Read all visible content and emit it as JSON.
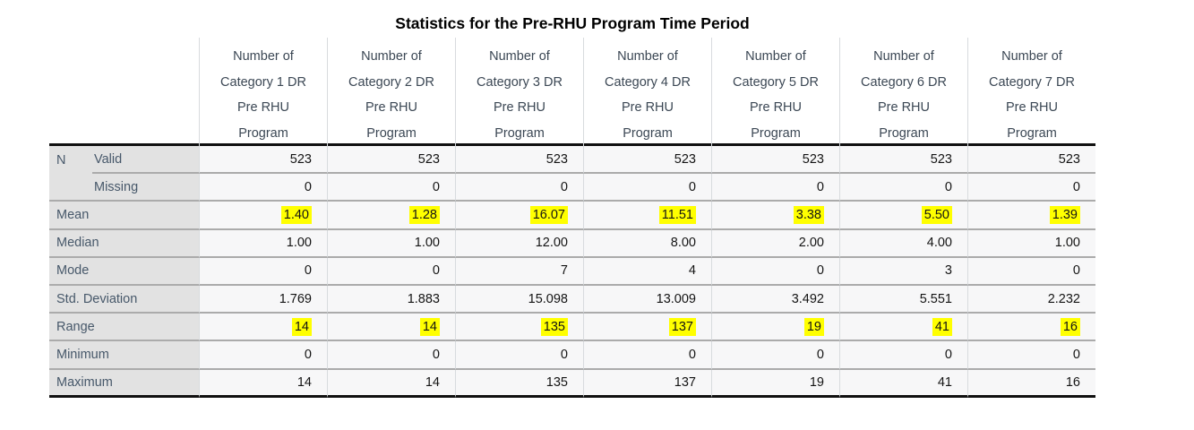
{
  "chart_data": {
    "type": "table",
    "title": "Statistics for the Pre-RHU Program Time Period",
    "columns": [
      {
        "header": "Number of Category 1 DR Pre RHU Program",
        "lines": [
          "Number of",
          "Category 1 DR",
          "Pre RHU",
          "Program"
        ]
      },
      {
        "header": "Number of Category 2 DR Pre RHU Program",
        "lines": [
          "Number of",
          "Category 2 DR",
          "Pre RHU",
          "Program"
        ]
      },
      {
        "header": "Number of Category 3 DR Pre RHU Program",
        "lines": [
          "Number of",
          "Category 3 DR",
          "Pre RHU",
          "Program"
        ]
      },
      {
        "header": "Number of Category 4 DR Pre RHU Program",
        "lines": [
          "Number of",
          "Category 4 DR",
          "Pre RHU",
          "Program"
        ]
      },
      {
        "header": "Number of Category 5 DR Pre RHU Program",
        "lines": [
          "Number of",
          "Category 5 DR",
          "Pre RHU",
          "Program"
        ]
      },
      {
        "header": "Number of Category 6 DR Pre RHU Program",
        "lines": [
          "Number of",
          "Category 6 DR",
          "Pre RHU",
          "Program"
        ]
      },
      {
        "header": "Number of Category 7 DR Pre RHU Program",
        "lines": [
          "Number of",
          "Category 7 DR",
          "Pre RHU",
          "Program"
        ]
      }
    ],
    "rows": [
      {
        "label": "N",
        "sublabel": "Valid",
        "values": [
          "523",
          "523",
          "523",
          "523",
          "523",
          "523",
          "523"
        ],
        "highlight": false
      },
      {
        "label": "",
        "sublabel": "Missing",
        "values": [
          "0",
          "0",
          "0",
          "0",
          "0",
          "0",
          "0"
        ],
        "highlight": false
      },
      {
        "label": "Mean",
        "values": [
          "1.40",
          "1.28",
          "16.07",
          "11.51",
          "3.38",
          "5.50",
          "1.39"
        ],
        "highlight": true
      },
      {
        "label": "Median",
        "values": [
          "1.00",
          "1.00",
          "12.00",
          "8.00",
          "2.00",
          "4.00",
          "1.00"
        ],
        "highlight": false
      },
      {
        "label": "Mode",
        "values": [
          "0",
          "0",
          "7",
          "4",
          "0",
          "3",
          "0"
        ],
        "highlight": false
      },
      {
        "label": "Std. Deviation",
        "values": [
          "1.769",
          "1.883",
          "15.098",
          "13.009",
          "3.492",
          "5.551",
          "2.232"
        ],
        "highlight": false
      },
      {
        "label": "Range",
        "values": [
          "14",
          "14",
          "135",
          "137",
          "19",
          "41",
          "16"
        ],
        "highlight": true
      },
      {
        "label": "Minimum",
        "values": [
          "0",
          "0",
          "0",
          "0",
          "0",
          "0",
          "0"
        ],
        "highlight": false
      },
      {
        "label": "Maximum",
        "values": [
          "14",
          "14",
          "135",
          "137",
          "19",
          "41",
          "16"
        ],
        "highlight": false
      }
    ],
    "highlighted_rows": [
      "Mean",
      "Range"
    ],
    "layout": {
      "grid": "horizontal-rules",
      "stub_position": "left",
      "values_alignment": "right"
    }
  },
  "colors": {
    "highlight": "#ffff00",
    "stub_background": "#e2e2e2",
    "data_cell_background": "#f7f7f8",
    "heavy_rule": "#101010",
    "light_rule": "#ababab",
    "column_rule": "#d8dbde",
    "label_text": "#47586a",
    "header_text": "#3b4754",
    "value_text": "#141414"
  }
}
